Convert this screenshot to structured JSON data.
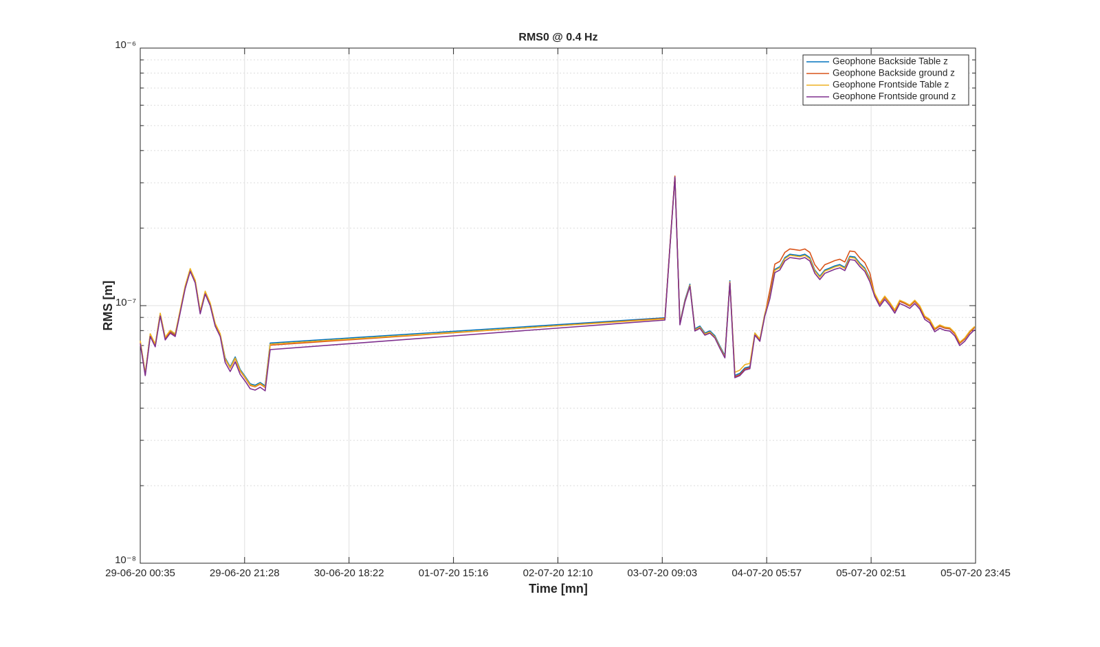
{
  "chart_data": {
    "type": "line",
    "title": "RMS0 @ 0.4 Hz",
    "x_label": "Time [mn]",
    "y_label": "RMS [m]",
    "y_scale": "log",
    "grid": true,
    "legend": "northeast",
    "xlim": [
      "29-06-20 00:35",
      "05-07-20 23:45"
    ],
    "xticks": [
      "29-06-20 00:35",
      "29-06-20 21:28",
      "30-06-20 18:22",
      "01-07-20 15:16",
      "02-07-20 12:10",
      "03-07-20 09:03",
      "04-07-20 05:57",
      "05-07-20 02:51",
      "05-07-20 23:45"
    ],
    "ylim": [
      1e-08,
      1e-06
    ],
    "yticks": [
      {
        "value": 1e-08,
        "label": "10⁻⁸"
      },
      {
        "value": 1e-07,
        "label": "10⁻⁷"
      },
      {
        "value": 1e-06,
        "label": "10⁻⁶"
      }
    ],
    "yminorticks": [
      2e-08,
      3e-08,
      4e-08,
      5e-08,
      6e-08,
      7e-08,
      8e-08,
      9e-08,
      2e-07,
      3e-07,
      4e-07,
      5e-07,
      6e-07,
      7e-07,
      8e-07,
      9e-07
    ],
    "x": [
      "29-06-20 00:35",
      "29-06-20 01:35",
      "29-06-20 02:35",
      "29-06-20 03:35",
      "29-06-20 04:35",
      "29-06-20 05:35",
      "29-06-20 06:35",
      "29-06-20 07:35",
      "29-06-20 08:35",
      "29-06-20 09:35",
      "29-06-20 10:35",
      "29-06-20 11:35",
      "29-06-20 12:35",
      "29-06-20 13:35",
      "29-06-20 14:35",
      "29-06-20 15:35",
      "29-06-20 16:35",
      "29-06-20 17:35",
      "29-06-20 18:35",
      "29-06-20 19:35",
      "29-06-20 20:35",
      "29-06-20 21:35",
      "29-06-20 22:35",
      "29-06-20 23:35",
      "30-06-20 00:35",
      "30-06-20 01:35",
      "30-06-20 02:35",
      "03-07-20 09:35",
      "03-07-20 10:35",
      "03-07-20 11:35",
      "03-07-20 12:35",
      "03-07-20 13:35",
      "03-07-20 14:35",
      "03-07-20 15:35",
      "03-07-20 16:35",
      "03-07-20 17:35",
      "03-07-20 18:35",
      "03-07-20 19:35",
      "03-07-20 20:35",
      "03-07-20 21:35",
      "03-07-20 22:35",
      "03-07-20 23:35",
      "04-07-20 00:35",
      "04-07-20 01:35",
      "04-07-20 02:35",
      "04-07-20 03:35",
      "04-07-20 04:35",
      "04-07-20 05:35",
      "04-07-20 06:35",
      "04-07-20 07:35",
      "04-07-20 08:35",
      "04-07-20 09:35",
      "04-07-20 10:35",
      "04-07-20 11:35",
      "04-07-20 12:35",
      "04-07-20 13:35",
      "04-07-20 14:35",
      "04-07-20 15:35",
      "04-07-20 16:35",
      "04-07-20 17:35",
      "04-07-20 18:35",
      "04-07-20 19:35",
      "04-07-20 20:35",
      "04-07-20 21:35",
      "04-07-20 22:35",
      "04-07-20 23:35",
      "05-07-20 00:35",
      "05-07-20 01:35",
      "05-07-20 02:35",
      "05-07-20 03:35",
      "05-07-20 04:35",
      "05-07-20 05:35",
      "05-07-20 06:35",
      "05-07-20 07:35",
      "05-07-20 08:35",
      "05-07-20 09:35",
      "05-07-20 10:35",
      "05-07-20 11:35",
      "05-07-20 12:35",
      "05-07-20 13:35",
      "05-07-20 14:35",
      "05-07-20 15:35",
      "05-07-20 16:35",
      "05-07-20 17:35",
      "05-07-20 18:35",
      "05-07-20 19:35",
      "05-07-20 20:35",
      "05-07-20 21:35",
      "05-07-20 22:35",
      "05-07-20 23:35"
    ],
    "series": [
      {
        "name": "Geophone Backside Table z",
        "color": "#0072bd",
        "values": [
          7.27e-08,
          5.46e-08,
          7.74e-08,
          7.06e-08,
          9.3e-08,
          7.51e-08,
          7.98e-08,
          7.74e-08,
          9.59e-08,
          1.189e-07,
          1.386e-07,
          1.25e-07,
          9.48e-08,
          1.132e-07,
          1.02e-07,
          8.49e-08,
          7.74e-08,
          6.27e-08,
          5.79e-08,
          6.32e-08,
          5.65e-08,
          5.31e-08,
          4.97e-08,
          4.91e-08,
          5.03e-08,
          4.88e-08,
          7.16e-08,
          8.97e-08,
          1.686e-07,
          3.153e-07,
          8.59e-08,
          1.052e-07,
          1.212e-07,
          8.13e-08,
          8.33e-08,
          7.83e-08,
          7.98e-08,
          7.64e-08,
          6.97e-08,
          6.4e-08,
          1.25e-07,
          5.36e-08,
          5.46e-08,
          5.73e-08,
          5.8e-08,
          7.83e-08,
          7.42e-08,
          9.3e-08,
          1.095e-07,
          1.383e-07,
          1.417e-07,
          1.536e-07,
          1.583e-07,
          1.574e-07,
          1.564e-07,
          1.583e-07,
          1.536e-07,
          1.375e-07,
          1.301e-07,
          1.375e-07,
          1.4e-07,
          1.427e-07,
          1.444e-07,
          1.409e-07,
          1.554e-07,
          1.545e-07,
          1.462e-07,
          1.4e-07,
          1.277e-07,
          1.105e-07,
          1.014e-07,
          1.078e-07,
          1.02e-07,
          9.54e-08,
          1.039e-07,
          1.02e-07,
          9.96e-08,
          1.039e-07,
          9.89e-08,
          9.02e-08,
          8.75e-08,
          8.08e-08,
          8.33e-08,
          8.18e-08,
          8.13e-08,
          7.78e-08,
          7.14e-08,
          7.42e-08,
          7.88e-08,
          8.23e-08
        ]
      },
      {
        "name": "Geophone Backside ground z",
        "color": "#d95319",
        "values": [
          7.2e-08,
          5.4e-08,
          7.67e-08,
          6.99e-08,
          9.21e-08,
          7.43e-08,
          7.9e-08,
          7.67e-08,
          9.49e-08,
          1.178e-07,
          1.373e-07,
          1.237e-07,
          9.38e-08,
          1.121e-07,
          1.01e-07,
          8.4e-08,
          7.67e-08,
          6.19e-08,
          5.72e-08,
          6.23e-08,
          5.57e-08,
          5.24e-08,
          4.9e-08,
          4.84e-08,
          4.96e-08,
          4.81e-08,
          7.02e-08,
          8.92e-08,
          1.703e-07,
          3.185e-07,
          8.5e-08,
          1.041e-07,
          1.2e-07,
          8.05e-08,
          8.25e-08,
          7.76e-08,
          7.9e-08,
          7.56e-08,
          6.9e-08,
          6.33e-08,
          1.237e-07,
          5.3e-08,
          5.4e-08,
          5.68e-08,
          5.75e-08,
          7.76e-08,
          7.34e-08,
          9.21e-08,
          1.148e-07,
          1.45e-07,
          1.486e-07,
          1.61e-07,
          1.66e-07,
          1.65e-07,
          1.639e-07,
          1.66e-07,
          1.61e-07,
          1.442e-07,
          1.364e-07,
          1.442e-07,
          1.468e-07,
          1.496e-07,
          1.514e-07,
          1.477e-07,
          1.63e-07,
          1.62e-07,
          1.533e-07,
          1.468e-07,
          1.339e-07,
          1.105e-07,
          1.014e-07,
          1.078e-07,
          1.02e-07,
          9.54e-08,
          1.039e-07,
          1.02e-07,
          9.96e-08,
          1.039e-07,
          9.89e-08,
          9.02e-08,
          8.75e-08,
          8.08e-08,
          8.33e-08,
          8.18e-08,
          8.13e-08,
          7.78e-08,
          7.14e-08,
          7.42e-08,
          7.88e-08,
          8.23e-08
        ]
      },
      {
        "name": "Geophone Frontside Table z",
        "color": "#edb120",
        "values": [
          7.31e-08,
          5.48e-08,
          7.78e-08,
          7.09e-08,
          9.35e-08,
          7.54e-08,
          8.02e-08,
          7.78e-08,
          9.64e-08,
          1.195e-07,
          1.393e-07,
          1.256e-07,
          9.52e-08,
          1.138e-07,
          1.025e-07,
          8.53e-08,
          7.78e-08,
          6.22e-08,
          5.74e-08,
          6.26e-08,
          5.6e-08,
          5.27e-08,
          4.93e-08,
          4.86e-08,
          4.99e-08,
          4.83e-08,
          7.09e-08,
          8.88e-08,
          1.686e-07,
          3.153e-07,
          8.5e-08,
          1.041e-07,
          1.2e-07,
          8.05e-08,
          8.25e-08,
          7.76e-08,
          7.9e-08,
          7.56e-08,
          6.9e-08,
          6.33e-08,
          1.237e-07,
          5.51e-08,
          5.62e-08,
          5.9e-08,
          5.97e-08,
          7.83e-08,
          7.42e-08,
          9.3e-08,
          1.084e-07,
          1.37e-07,
          1.404e-07,
          1.521e-07,
          1.568e-07,
          1.559e-07,
          1.548e-07,
          1.568e-07,
          1.521e-07,
          1.362e-07,
          1.288e-07,
          1.362e-07,
          1.386e-07,
          1.413e-07,
          1.43e-07,
          1.395e-07,
          1.539e-07,
          1.53e-07,
          1.447e-07,
          1.386e-07,
          1.265e-07,
          1.115e-07,
          1.024e-07,
          1.089e-07,
          1.03e-07,
          9.63e-08,
          1.05e-07,
          1.03e-07,
          1.005e-07,
          1.05e-07,
          9.99e-08,
          9.11e-08,
          8.84e-08,
          8.16e-08,
          8.42e-08,
          8.26e-08,
          8.21e-08,
          7.86e-08,
          7.21e-08,
          7.49e-08,
          7.96e-08,
          8.31e-08
        ]
      },
      {
        "name": "Geophone Frontside ground z",
        "color": "#7e2f8e",
        "values": [
          7.13e-08,
          5.35e-08,
          7.59e-08,
          6.92e-08,
          9.12e-08,
          7.36e-08,
          7.82e-08,
          7.59e-08,
          9.4e-08,
          1.166e-07,
          1.359e-07,
          1.225e-07,
          9.29e-08,
          1.11e-07,
          1e-07,
          8.32e-08,
          7.59e-08,
          6.01e-08,
          5.55e-08,
          6.05e-08,
          5.41e-08,
          5.09e-08,
          4.76e-08,
          4.7e-08,
          4.82e-08,
          4.67e-08,
          6.75e-08,
          8.79e-08,
          1.686e-07,
          3.153e-07,
          8.42e-08,
          1.031e-07,
          1.188e-07,
          7.97e-08,
          8.17e-08,
          7.68e-08,
          7.82e-08,
          7.49e-08,
          6.83e-08,
          6.27e-08,
          1.225e-07,
          5.25e-08,
          5.35e-08,
          5.62e-08,
          5.69e-08,
          7.68e-08,
          7.27e-08,
          9.12e-08,
          1.063e-07,
          1.343e-07,
          1.376e-07,
          1.491e-07,
          1.537e-07,
          1.528e-07,
          1.518e-07,
          1.537e-07,
          1.491e-07,
          1.335e-07,
          1.263e-07,
          1.335e-07,
          1.359e-07,
          1.385e-07,
          1.402e-07,
          1.368e-07,
          1.509e-07,
          1.5e-07,
          1.419e-07,
          1.359e-07,
          1.24e-07,
          1.083e-07,
          9.94e-08,
          1.057e-07,
          1e-07,
          9.35e-08,
          1.019e-07,
          1e-07,
          9.76e-08,
          1.019e-07,
          9.7e-08,
          8.84e-08,
          8.58e-08,
          7.92e-08,
          8.17e-08,
          8.02e-08,
          7.97e-08,
          7.63e-08,
          7e-08,
          7.27e-08,
          7.73e-08,
          8.07e-08
        ]
      }
    ]
  }
}
